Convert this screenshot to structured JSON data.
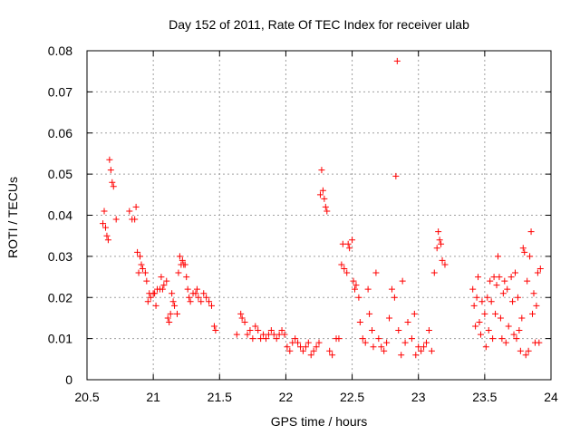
{
  "chart_data": {
    "type": "scatter",
    "title": "Day 152 of 2011, Rate Of TEC Index for receiver ulab",
    "xlabel": "GPS time / hours",
    "ylabel": "ROTI / TECUs",
    "xlim": [
      20.5,
      24
    ],
    "ylim": [
      0,
      0.08
    ],
    "grid": true,
    "marker": "+",
    "color": "#ff0000",
    "x_ticks": [
      "20.5",
      "21",
      "21.5",
      "22",
      "22.5",
      "23",
      "23.5",
      "24"
    ],
    "y_ticks": [
      "0",
      "0.01",
      "0.02",
      "0.03",
      "0.04",
      "0.05",
      "0.06",
      "0.07",
      "0.08"
    ],
    "points": [
      [
        20.62,
        0.038
      ],
      [
        20.63,
        0.041
      ],
      [
        20.64,
        0.037
      ],
      [
        20.65,
        0.035
      ],
      [
        20.66,
        0.034
      ],
      [
        20.67,
        0.0535
      ],
      [
        20.68,
        0.051
      ],
      [
        20.69,
        0.048
      ],
      [
        20.7,
        0.047
      ],
      [
        20.72,
        0.039
      ],
      [
        20.82,
        0.041
      ],
      [
        20.84,
        0.039
      ],
      [
        20.86,
        0.039
      ],
      [
        20.87,
        0.042
      ],
      [
        20.88,
        0.031
      ],
      [
        20.89,
        0.026
      ],
      [
        20.9,
        0.03
      ],
      [
        20.91,
        0.028
      ],
      [
        20.92,
        0.027
      ],
      [
        20.94,
        0.026
      ],
      [
        20.95,
        0.024
      ],
      [
        20.96,
        0.019
      ],
      [
        20.97,
        0.021
      ],
      [
        20.98,
        0.02
      ],
      [
        21.0,
        0.021
      ],
      [
        21.01,
        0.021
      ],
      [
        21.02,
        0.018
      ],
      [
        21.03,
        0.022
      ],
      [
        21.05,
        0.022
      ],
      [
        21.06,
        0.025
      ],
      [
        21.07,
        0.022
      ],
      [
        21.08,
        0.023
      ],
      [
        21.1,
        0.024
      ],
      [
        21.11,
        0.015
      ],
      [
        21.12,
        0.014
      ],
      [
        21.13,
        0.016
      ],
      [
        21.14,
        0.021
      ],
      [
        21.15,
        0.019
      ],
      [
        21.16,
        0.018
      ],
      [
        21.18,
        0.016
      ],
      [
        21.19,
        0.026
      ],
      [
        21.2,
        0.03
      ],
      [
        21.21,
        0.028
      ],
      [
        21.22,
        0.029
      ],
      [
        21.23,
        0.028
      ],
      [
        21.24,
        0.028
      ],
      [
        21.25,
        0.025
      ],
      [
        21.26,
        0.022
      ],
      [
        21.27,
        0.02
      ],
      [
        21.28,
        0.019
      ],
      [
        21.3,
        0.021
      ],
      [
        21.32,
        0.021
      ],
      [
        21.33,
        0.022
      ],
      [
        21.34,
        0.02
      ],
      [
        21.36,
        0.019
      ],
      [
        21.38,
        0.021
      ],
      [
        21.4,
        0.02
      ],
      [
        21.42,
        0.019
      ],
      [
        21.44,
        0.018
      ],
      [
        21.46,
        0.013
      ],
      [
        21.47,
        0.012
      ],
      [
        21.63,
        0.011
      ],
      [
        21.66,
        0.016
      ],
      [
        21.67,
        0.015
      ],
      [
        21.69,
        0.014
      ],
      [
        21.71,
        0.011
      ],
      [
        21.73,
        0.012
      ],
      [
        21.75,
        0.01
      ],
      [
        21.77,
        0.013
      ],
      [
        21.79,
        0.012
      ],
      [
        21.81,
        0.01
      ],
      [
        21.83,
        0.011
      ],
      [
        21.85,
        0.01
      ],
      [
        21.87,
        0.011
      ],
      [
        21.89,
        0.012
      ],
      [
        21.91,
        0.011
      ],
      [
        21.93,
        0.01
      ],
      [
        21.95,
        0.011
      ],
      [
        21.97,
        0.012
      ],
      [
        21.99,
        0.011
      ],
      [
        22.01,
        0.008
      ],
      [
        22.03,
        0.007
      ],
      [
        22.05,
        0.009
      ],
      [
        22.07,
        0.01
      ],
      [
        22.09,
        0.009
      ],
      [
        22.11,
        0.008
      ],
      [
        22.13,
        0.007
      ],
      [
        22.15,
        0.008
      ],
      [
        22.17,
        0.009
      ],
      [
        22.19,
        0.006
      ],
      [
        22.21,
        0.007
      ],
      [
        22.23,
        0.008
      ],
      [
        22.25,
        0.009
      ],
      [
        22.26,
        0.045
      ],
      [
        22.27,
        0.051
      ],
      [
        22.28,
        0.046
      ],
      [
        22.29,
        0.044
      ],
      [
        22.3,
        0.042
      ],
      [
        22.31,
        0.041
      ],
      [
        22.33,
        0.007
      ],
      [
        22.35,
        0.006
      ],
      [
        22.38,
        0.01
      ],
      [
        22.4,
        0.01
      ],
      [
        22.42,
        0.028
      ],
      [
        22.43,
        0.033
      ],
      [
        22.44,
        0.027
      ],
      [
        22.46,
        0.026
      ],
      [
        22.47,
        0.033
      ],
      [
        22.48,
        0.032
      ],
      [
        22.5,
        0.034
      ],
      [
        22.51,
        0.024
      ],
      [
        22.52,
        0.022
      ],
      [
        22.53,
        0.023
      ],
      [
        22.55,
        0.02
      ],
      [
        22.56,
        0.014
      ],
      [
        22.58,
        0.01
      ],
      [
        22.6,
        0.009
      ],
      [
        22.62,
        0.022
      ],
      [
        22.63,
        0.016
      ],
      [
        22.65,
        0.012
      ],
      [
        22.66,
        0.008
      ],
      [
        22.68,
        0.026
      ],
      [
        22.7,
        0.01
      ],
      [
        22.72,
        0.008
      ],
      [
        22.74,
        0.007
      ],
      [
        22.76,
        0.009
      ],
      [
        22.78,
        0.015
      ],
      [
        22.8,
        0.022
      ],
      [
        22.82,
        0.02
      ],
      [
        22.83,
        0.0495
      ],
      [
        22.84,
        0.0775
      ],
      [
        22.85,
        0.012
      ],
      [
        22.87,
        0.006
      ],
      [
        22.88,
        0.024
      ],
      [
        22.9,
        0.009
      ],
      [
        22.92,
        0.014
      ],
      [
        22.95,
        0.01
      ],
      [
        22.97,
        0.016
      ],
      [
        22.98,
        0.006
      ],
      [
        23.0,
        0.008
      ],
      [
        23.02,
        0.007
      ],
      [
        23.04,
        0.008
      ],
      [
        23.06,
        0.009
      ],
      [
        23.08,
        0.012
      ],
      [
        23.1,
        0.007
      ],
      [
        23.12,
        0.026
      ],
      [
        23.14,
        0.032
      ],
      [
        23.15,
        0.036
      ],
      [
        23.16,
        0.034
      ],
      [
        23.17,
        0.033
      ],
      [
        23.18,
        0.029
      ],
      [
        23.2,
        0.028
      ],
      [
        23.41,
        0.022
      ],
      [
        23.42,
        0.018
      ],
      [
        23.43,
        0.013
      ],
      [
        23.44,
        0.02
      ],
      [
        23.45,
        0.025
      ],
      [
        23.46,
        0.014
      ],
      [
        23.47,
        0.011
      ],
      [
        23.48,
        0.019
      ],
      [
        23.5,
        0.016
      ],
      [
        23.51,
        0.008
      ],
      [
        23.52,
        0.02
      ],
      [
        23.53,
        0.012
      ],
      [
        23.54,
        0.024
      ],
      [
        23.55,
        0.019
      ],
      [
        23.56,
        0.01
      ],
      [
        23.57,
        0.025
      ],
      [
        23.58,
        0.016
      ],
      [
        23.59,
        0.023
      ],
      [
        23.6,
        0.03
      ],
      [
        23.61,
        0.025
      ],
      [
        23.62,
        0.015
      ],
      [
        23.63,
        0.01
      ],
      [
        23.64,
        0.021
      ],
      [
        23.65,
        0.024
      ],
      [
        23.66,
        0.009
      ],
      [
        23.67,
        0.022
      ],
      [
        23.68,
        0.013
      ],
      [
        23.7,
        0.025
      ],
      [
        23.71,
        0.019
      ],
      [
        23.72,
        0.011
      ],
      [
        23.73,
        0.026
      ],
      [
        23.74,
        0.01
      ],
      [
        23.75,
        0.02
      ],
      [
        23.76,
        0.012
      ],
      [
        23.77,
        0.007
      ],
      [
        23.78,
        0.015
      ],
      [
        23.79,
        0.032
      ],
      [
        23.8,
        0.031
      ],
      [
        23.81,
        0.006
      ],
      [
        23.82,
        0.024
      ],
      [
        23.83,
        0.007
      ],
      [
        23.84,
        0.03
      ],
      [
        23.85,
        0.036
      ],
      [
        23.86,
        0.016
      ],
      [
        23.87,
        0.021
      ],
      [
        23.88,
        0.009
      ],
      [
        23.89,
        0.018
      ],
      [
        23.9,
        0.026
      ],
      [
        23.91,
        0.009
      ],
      [
        23.92,
        0.027
      ]
    ]
  }
}
